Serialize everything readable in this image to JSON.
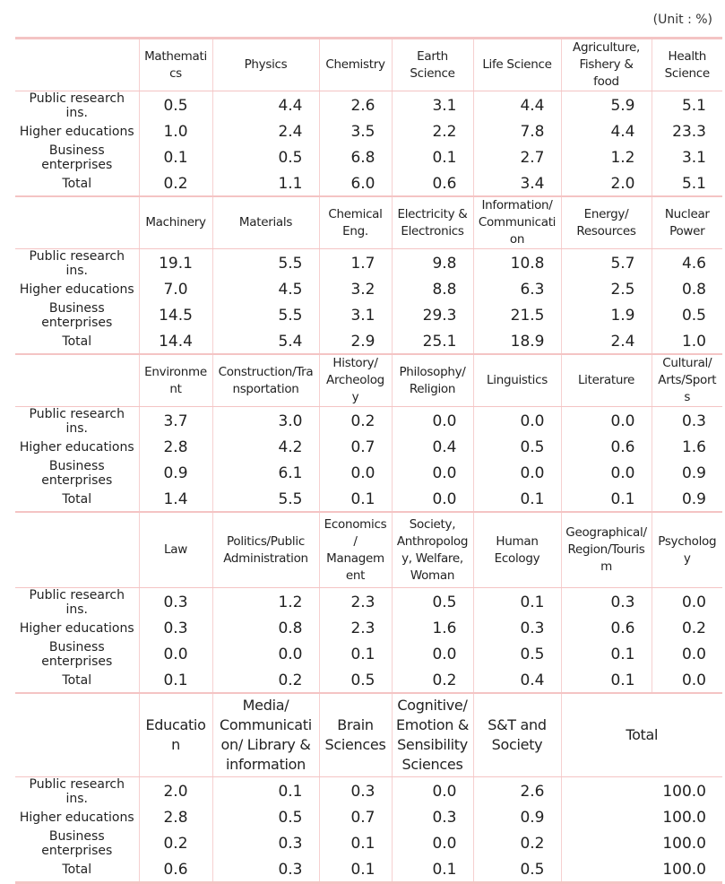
{
  "unit": "(Unit : %)",
  "blocks": [
    {
      "headers": [
        "Mathematics",
        "Physics",
        "Chemistry",
        "Earth Science",
        "Life Science",
        "Agriculture, Fishery & food",
        "Health Science"
      ],
      "rows": [
        {
          "label": "Public research ins.",
          "values": [
            "0.5",
            "4.4",
            "2.6",
            "3.1",
            "4.4",
            "5.9",
            "5.1"
          ]
        },
        {
          "label": "Higher educations",
          "values": [
            "1.0",
            "2.4",
            "3.5",
            "2.2",
            "7.8",
            "4.4",
            "23.3"
          ]
        },
        {
          "label": "Business enterprises",
          "values": [
            "0.1",
            "0.5",
            "6.8",
            "0.1",
            "2.7",
            "1.2",
            "3.1"
          ]
        },
        {
          "label": "Total",
          "values": [
            "0.2",
            "1.1",
            "6.0",
            "0.6",
            "3.4",
            "2.0",
            "5.1"
          ]
        }
      ]
    },
    {
      "headers": [
        "Machinery",
        "Materials",
        "Chemical Eng.",
        "Electricity & Electronics",
        "Information/ Communication",
        "Energy/ Resources",
        "Nuclear Power"
      ],
      "rows": [
        {
          "label": "Public research ins.",
          "values": [
            "19.1",
            "5.5",
            "1.7",
            "9.8",
            "10.8",
            "5.7",
            "4.6"
          ]
        },
        {
          "label": "Higher educations",
          "values": [
            "7.0",
            "4.5",
            "3.2",
            "8.8",
            "6.3",
            "2.5",
            "0.8"
          ]
        },
        {
          "label": "Business enterprises",
          "values": [
            "14.5",
            "5.5",
            "3.1",
            "29.3",
            "21.5",
            "1.9",
            "0.5"
          ]
        },
        {
          "label": "Total",
          "values": [
            "14.4",
            "5.4",
            "2.9",
            "25.1",
            "18.9",
            "2.4",
            "1.0"
          ]
        }
      ]
    },
    {
      "headers": [
        "Environment",
        "Construction/Transportation",
        "History/ Archeology",
        "Philosophy/ Religion",
        "Linguistics",
        "Literature",
        "Cultural/ Arts/Sports"
      ],
      "rows": [
        {
          "label": "Public research ins.",
          "values": [
            "3.7",
            "3.0",
            "0.2",
            "0.0",
            "0.0",
            "0.0",
            "0.3"
          ]
        },
        {
          "label": "Higher educations",
          "values": [
            "2.8",
            "4.2",
            "0.7",
            "0.4",
            "0.5",
            "0.6",
            "1.6"
          ]
        },
        {
          "label": "Business enterprises",
          "values": [
            "0.9",
            "6.1",
            "0.0",
            "0.0",
            "0.0",
            "0.0",
            "0.9"
          ]
        },
        {
          "label": "Total",
          "values": [
            "1.4",
            "5.5",
            "0.1",
            "0.0",
            "0.1",
            "0.1",
            "0.9"
          ]
        }
      ]
    },
    {
      "headers": [
        "Law",
        "Politics/Public Administration",
        "Economics/ Management",
        "Society, Anthropology, Welfare, Woman",
        "Human Ecology",
        "Geographical/ Region/Tourism",
        "Psychology"
      ],
      "rows": [
        {
          "label": "Public research ins.",
          "values": [
            "0.3",
            "1.2",
            "2.3",
            "0.5",
            "0.1",
            "0.3",
            "0.0"
          ]
        },
        {
          "label": "Higher educations",
          "values": [
            "0.3",
            "0.8",
            "2.3",
            "1.6",
            "0.3",
            "0.6",
            "0.2"
          ]
        },
        {
          "label": "Business enterprises",
          "values": [
            "0.0",
            "0.0",
            "0.1",
            "0.0",
            "0.5",
            "0.1",
            "0.0"
          ]
        },
        {
          "label": "Total",
          "values": [
            "0.1",
            "0.2",
            "0.5",
            "0.2",
            "0.4",
            "0.1",
            "0.0"
          ]
        }
      ]
    },
    {
      "headers": [
        "Education",
        "Media/ Communication/ Library & information",
        "Brain Sciences",
        "Cognitive/ Emotion & Sensibility Sciences",
        "S&T and Society",
        "Total"
      ],
      "rows": [
        {
          "label": "Public research ins.",
          "values": [
            "2.0",
            "0.1",
            "0.3",
            "0.0",
            "2.6",
            "100.0"
          ]
        },
        {
          "label": "Higher educations",
          "values": [
            "2.8",
            "0.5",
            "0.7",
            "0.3",
            "0.9",
            "100.0"
          ]
        },
        {
          "label": "Business enterprises",
          "values": [
            "0.2",
            "0.3",
            "0.1",
            "0.0",
            "0.2",
            "100.0"
          ]
        },
        {
          "label": "Total",
          "values": [
            "0.6",
            "0.3",
            "0.1",
            "0.1",
            "0.5",
            "100.0"
          ]
        }
      ]
    }
  ]
}
